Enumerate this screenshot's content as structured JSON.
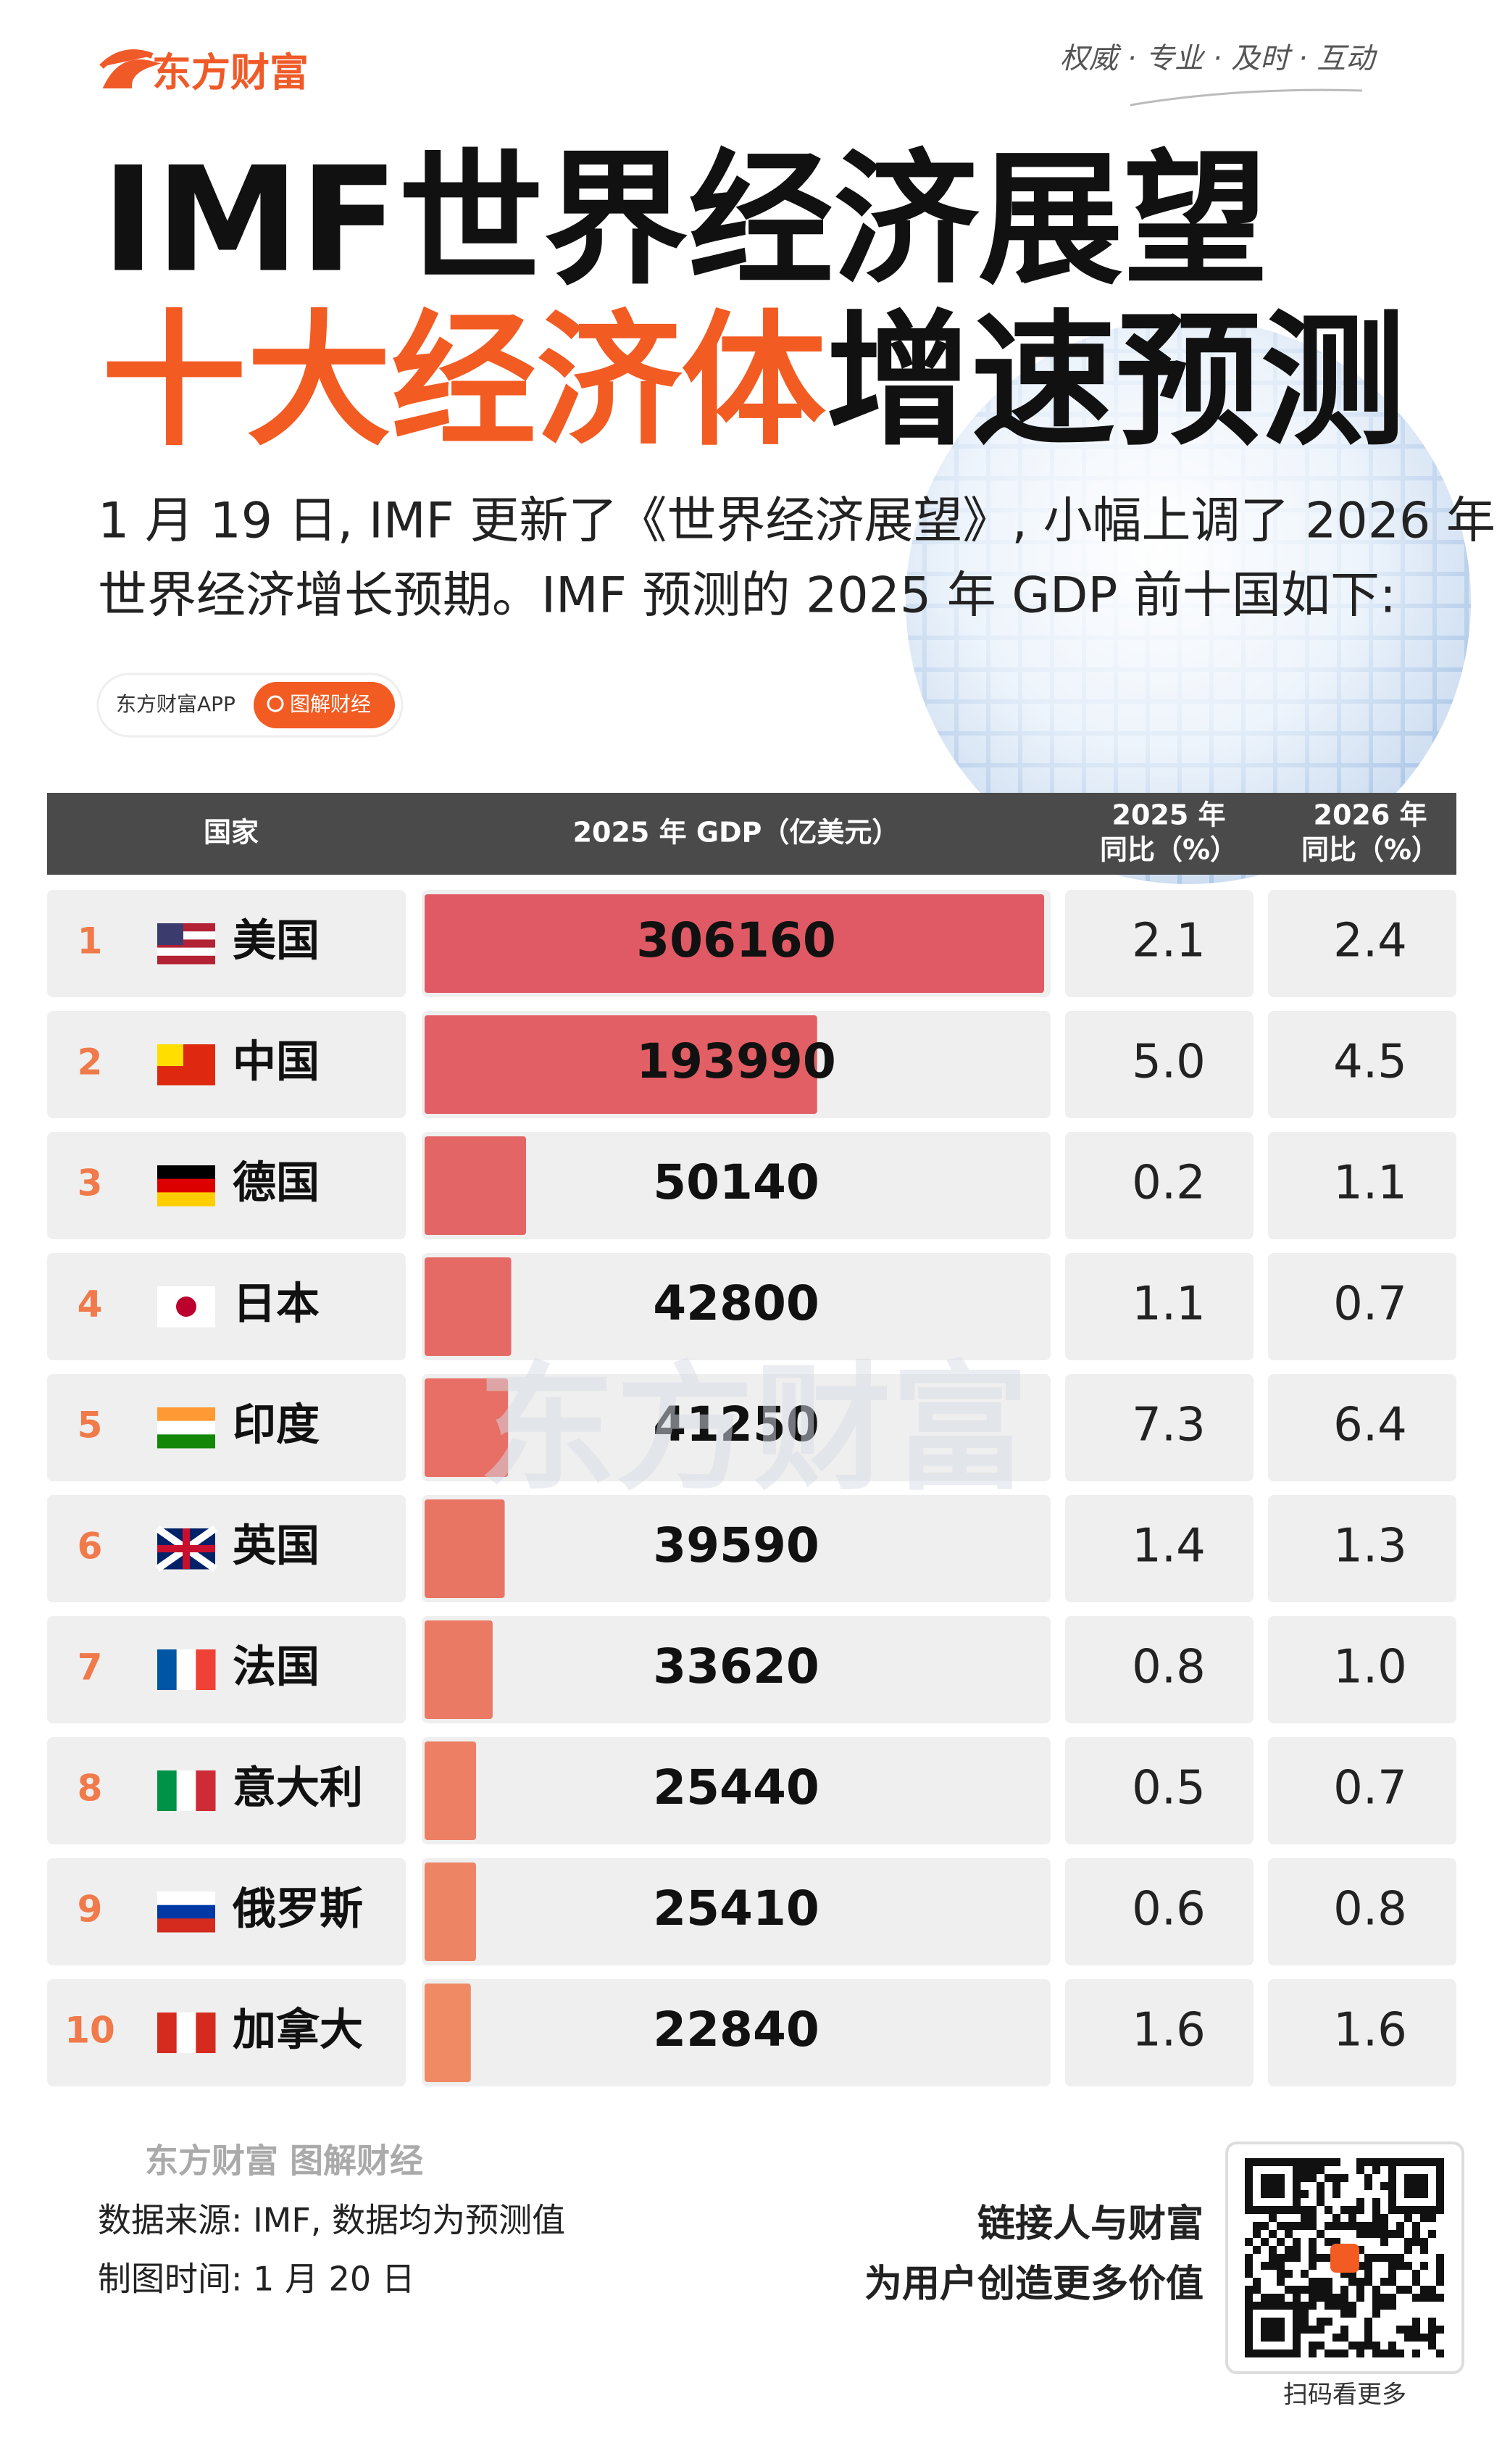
{
  "header": {
    "brand": "东方财富",
    "slogan": "权威 · 专业 · 及时 · 互动",
    "title_line1": "IMF世界经济展望",
    "title_line2_orange": "十大经济体",
    "title_line2_black": "增速预测",
    "intro_lines": [
      "1 月 19 日, IMF 更新了《世界经济展望》, 小幅上调了 2026 年",
      "世界经济增长预期。IMF 预测的 2025 年 GDP 前十国如下:"
    ],
    "app_tag": "东方财富APP",
    "search_tag": "图解财经"
  },
  "table": {
    "columns": [
      [
        "国家"
      ],
      [
        "2025 年 GDP（亿美元）"
      ],
      [
        "2025 年",
        "同比（%）"
      ],
      [
        "2026 年",
        "同比（%）"
      ]
    ],
    "rows": [
      {
        "rank": 1,
        "country": "美国",
        "gdp": 306160,
        "growth_2025": "2.1",
        "growth_2026": "2.4"
      },
      {
        "rank": 2,
        "country": "中国",
        "gdp": 193990,
        "growth_2025": "5.0",
        "growth_2026": "4.5"
      },
      {
        "rank": 3,
        "country": "德国",
        "gdp": 50140,
        "growth_2025": "0.2",
        "growth_2026": "1.1"
      },
      {
        "rank": 4,
        "country": "日本",
        "gdp": 42800,
        "growth_2025": "1.1",
        "growth_2026": "0.7"
      },
      {
        "rank": 5,
        "country": "印度",
        "gdp": 41250,
        "growth_2025": "7.3",
        "growth_2026": "6.4"
      },
      {
        "rank": 6,
        "country": "英国",
        "gdp": 39590,
        "growth_2025": "1.4",
        "growth_2026": "1.3"
      },
      {
        "rank": 7,
        "country": "法国",
        "gdp": 33620,
        "growth_2025": "0.8",
        "growth_2026": "1.0"
      },
      {
        "rank": 8,
        "country": "意大利",
        "gdp": 25440,
        "growth_2025": "0.5",
        "growth_2026": "0.7"
      },
      {
        "rank": 9,
        "country": "俄罗斯",
        "gdp": 25410,
        "growth_2025": "0.6",
        "growth_2026": "0.8"
      },
      {
        "rank": 10,
        "country": "加拿大",
        "gdp": 22840,
        "growth_2025": "1.6",
        "growth_2026": "1.6"
      }
    ]
  },
  "watermark": "东方财富",
  "footer": {
    "brand": "东方财富 图解财经",
    "source": "数据来源: IMF, 数据均为预测值",
    "date": "制图时间: 1 月 20 日",
    "slogan_line1": "链接人与财富",
    "slogan_line2": "为用户创造更多价值",
    "qr_caption": "扫码看更多"
  }
}
